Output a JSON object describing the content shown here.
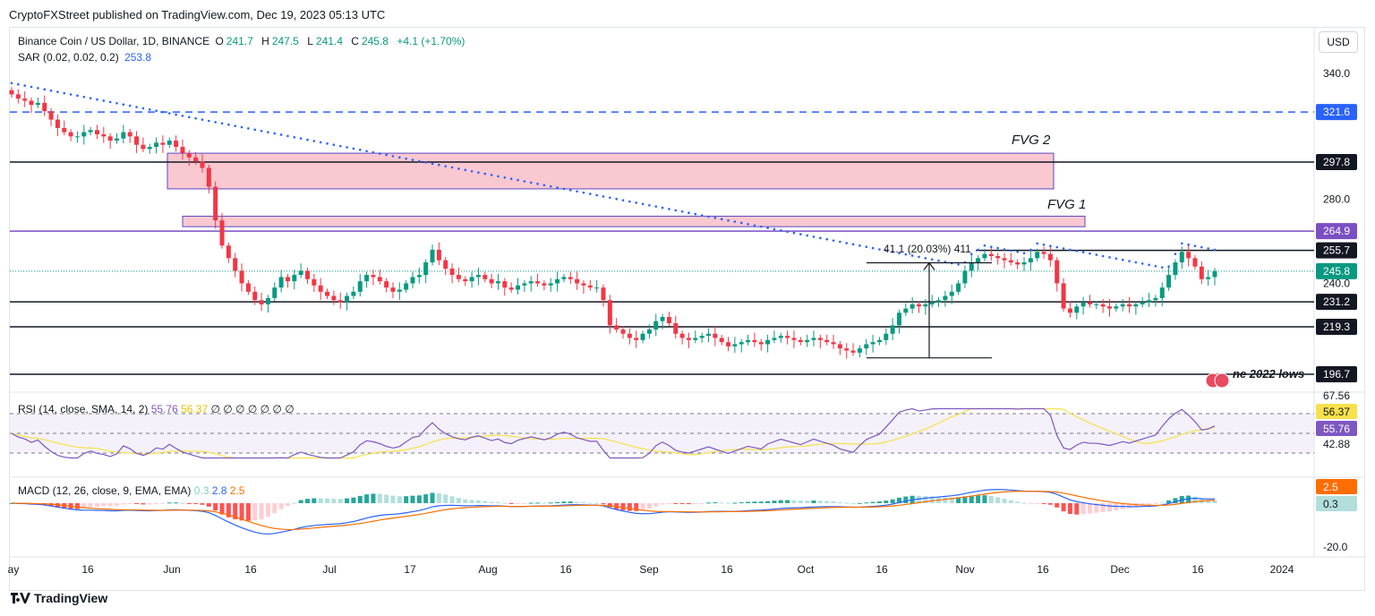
{
  "header": {
    "published": "CryptoFXStreet published on TradingView.com, Dec 19, 2023 05:13 UTC"
  },
  "legend": {
    "symbol": "Binance Coin / US Dollar, 1D, BINANCE",
    "o_label": "O",
    "o": "241.7",
    "h_label": "H",
    "h": "247.5",
    "l_label": "L",
    "l": "241.4",
    "c_label": "C",
    "c": "245.8",
    "change": "+4.1 (+1.70%)",
    "sar_label": "SAR (0.02, 0.02, 0.2)",
    "sar_value": "253.8"
  },
  "currency_button": "USD",
  "brand": "TradingView",
  "colors": {
    "up": "#089981",
    "down": "#f23645",
    "sar": "#2962ff",
    "fvg_fill": "#f9c8d0",
    "fvg_border": "#5b4bc4",
    "level": "#131722",
    "dashed_level": "#2962ff",
    "rsi": "#7e57c2",
    "rsi_ma": "#f7e14b",
    "macd": "#2962ff",
    "signal": "#ff6d00"
  },
  "chart_data": [
    {
      "type": "candlestick",
      "title": "Binance Coin / US Dollar, 1D, BINANCE",
      "x_ticks": [
        "ay",
        "16",
        "Jun",
        "16",
        "Jul",
        "17",
        "Aug",
        "16",
        "Sep",
        "16",
        "Oct",
        "16",
        "Nov",
        "16",
        "Dec",
        "16",
        "2024"
      ],
      "y_ticks": [
        "340.0",
        "280.0",
        "240.0"
      ],
      "ylim": [
        190,
        350
      ],
      "current_price": "245.8",
      "sar_value": "253.8",
      "levels": [
        {
          "value": 321.6,
          "label": "321.6",
          "style": "dashed"
        },
        {
          "value": 297.8,
          "label": "297.8",
          "style": "solid"
        },
        {
          "value": 264.9,
          "label": "264.9",
          "style": "purple"
        },
        {
          "value": 255.7,
          "label": "255.7",
          "style": "solid"
        },
        {
          "value": 231.2,
          "label": "231.2",
          "style": "solid"
        },
        {
          "value": 219.3,
          "label": "219.3",
          "style": "solid"
        },
        {
          "value": 196.7,
          "label": "196.7",
          "style": "solid"
        }
      ],
      "zones": [
        {
          "label": "FVG 2",
          "low": 285,
          "high": 302
        },
        {
          "label": "FVG 1",
          "low": 267,
          "high": 272
        }
      ],
      "annotations": {
        "measure": "41.1 (20.03%) 411",
        "june_lows": "ne 2022 lows"
      },
      "close_series": [
        330,
        328,
        327,
        325,
        326,
        322,
        318,
        314,
        312,
        310,
        310,
        312,
        313,
        311,
        310,
        308,
        309,
        312,
        310,
        306,
        304,
        305,
        307,
        306,
        308,
        305,
        302,
        300,
        298,
        295,
        286,
        270,
        258,
        252,
        246,
        240,
        236,
        232,
        230,
        233,
        238,
        243,
        241,
        244,
        246,
        242,
        239,
        236,
        234,
        232,
        231,
        234,
        236,
        241,
        244,
        243,
        241,
        238,
        236,
        237,
        240,
        243,
        244,
        250,
        256,
        251,
        247,
        244,
        242,
        241,
        243,
        244,
        242,
        240,
        241,
        238,
        237,
        239,
        240,
        241,
        240,
        239,
        240,
        242,
        243,
        242,
        240,
        239,
        238,
        238,
        232,
        220,
        218,
        216,
        214,
        213,
        216,
        218,
        222,
        224,
        221,
        216,
        214,
        213,
        214,
        215,
        216,
        214,
        212,
        210,
        211,
        212,
        213,
        212,
        211,
        213,
        214,
        215,
        214,
        213,
        212,
        213,
        214,
        213,
        212,
        211,
        209,
        208,
        207,
        209,
        211,
        212,
        213,
        216,
        220,
        226,
        228,
        230,
        229,
        230,
        231,
        232,
        234,
        236,
        240,
        246,
        250,
        252,
        254,
        253,
        252,
        251,
        250,
        249,
        250,
        252,
        255,
        254,
        251,
        240,
        228,
        226,
        229,
        231,
        230,
        230,
        229,
        228,
        229,
        230,
        229,
        230,
        231,
        232,
        233,
        238,
        244,
        250,
        255,
        252,
        248,
        242,
        243,
        245.8
      ]
    },
    {
      "type": "line",
      "title": "RSI (14, close, SMA, 14, 2)",
      "series": [
        {
          "name": "RSI",
          "last": "55.76"
        },
        {
          "name": "SMA",
          "last": "56.37"
        }
      ],
      "extra_values": "∅ ∅ ∅ ∅ ∅ ∅ ∅",
      "y_ticks": [
        "67.56",
        "42.88"
      ]
    },
    {
      "type": "bar",
      "title": "MACD (12, 26, close, 9, EMA, EMA)",
      "series": [
        {
          "name": "Histogram",
          "last": "0.3"
        },
        {
          "name": "MACD",
          "last": "2.8"
        },
        {
          "name": "Signal",
          "last": "2.5"
        }
      ],
      "y_ticks": [
        "-20.0"
      ]
    }
  ]
}
